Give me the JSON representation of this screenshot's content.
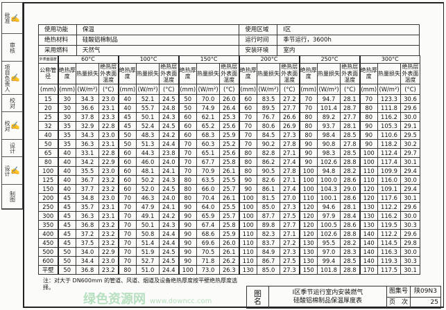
{
  "side_strip": [
    {
      "label": "批准",
      "signature": "签"
    },
    {
      "label": "审核",
      "signature": ""
    },
    {
      "label": "项目负责人",
      "signature": "签"
    },
    {
      "label": "校对",
      "signature": ""
    },
    {
      "label": "校对",
      "signature": "签"
    },
    {
      "label": "设计",
      "signature": ""
    },
    {
      "label": "设计",
      "signature": "签"
    },
    {
      "label": "制图",
      "signature": ""
    }
  ],
  "info": {
    "left": [
      {
        "label": "使用功能",
        "value": "保温"
      },
      {
        "label": "绝热材料",
        "value": "硅酸铝棉制品"
      },
      {
        "label": "采用燃料",
        "value": "天然气"
      }
    ],
    "right": [
      {
        "label": "使用区域",
        "value": "Ⅰ区"
      },
      {
        "label": "运行时间",
        "value": "季节运行，3600h"
      },
      {
        "label": "安装环境",
        "value": "室内"
      }
    ]
  },
  "table": {
    "corner": "外表面温度",
    "temperatures": [
      "60°C",
      "100°C",
      "150°C",
      "200°C",
      "250°C",
      "300°C"
    ],
    "first_header": "公称管径",
    "sub_headers": [
      "绝热厚度",
      "热量损失",
      "绝热层外表面温度"
    ],
    "first_unit": "(mm)",
    "units": [
      "(mm)",
      "(W/m²)",
      "(°C)"
    ],
    "rows": [
      [
        "15",
        "30",
        "34.3",
        "23.0",
        "40",
        "52.1",
        "24.5",
        "50",
        "70.0",
        "26.0",
        "60",
        "83.5",
        "27.2",
        "70",
        "94.7",
        "28.1",
        "70",
        "123.3",
        "30.6"
      ],
      [
        "20",
        "30",
        "36.6",
        "23.1",
        "40",
        "55.7",
        "24.8",
        "50",
        "74.9",
        "26.4",
        "60",
        "89.5",
        "27.7",
        "70",
        "101.4",
        "28.7",
        "80",
        "111.8",
        "29.6"
      ],
      [
        "25",
        "30",
        "37.8",
        "23.3",
        "45",
        "50.1",
        "24.3",
        "60",
        "62.1",
        "25.3",
        "70",
        "76.7",
        "26.6",
        "80",
        "89.2",
        "27.7",
        "80",
        "116.2",
        "30.0"
      ],
      [
        "32",
        "35",
        "32.9",
        "22.8",
        "45",
        "52.4",
        "24.5",
        "60",
        "65.2",
        "25.6",
        "70",
        "80.6",
        "26.9",
        "80",
        "93.7",
        "28.1",
        "90",
        "105.3",
        "29.1"
      ],
      [
        "40",
        "35",
        "34.3",
        "23.0",
        "50",
        "48.3",
        "24.2",
        "60",
        "68.3",
        "25.9",
        "70",
        "84.5",
        "27.3",
        "80",
        "98.4",
        "28.5",
        "90",
        "110.6",
        "29.5"
      ],
      [
        "50",
        "35",
        "36.3",
        "23.1",
        "50",
        "51.3",
        "24.4",
        "70",
        "60.3",
        "25.2",
        "70",
        "90.2",
        "27.8",
        "90",
        "90.8",
        "27.8",
        "90",
        "118.2",
        "30.2"
      ],
      [
        "65",
        "40",
        "33.1",
        "22.8",
        "60",
        "44.3",
        "23.8",
        "70",
        "65.1",
        "25.6",
        "80",
        "82.8",
        "27.1",
        "90",
        "98.3",
        "28.5",
        "100",
        "112.4",
        "29.7"
      ],
      [
        "80",
        "40",
        "34.2",
        "22.9",
        "60",
        "46.0",
        "24.0",
        "70",
        "67.7",
        "25.8",
        "80",
        "86.2",
        "27.4",
        "90",
        "102.6",
        "28.8",
        "100",
        "117.4",
        "30.1"
      ],
      [
        "100",
        "40",
        "35.5",
        "23.0",
        "60",
        "48.1",
        "24.1",
        "70",
        "70.9",
        "26.1",
        "80",
        "90.5",
        "27.8",
        "100",
        "94.8",
        "28.2",
        "110",
        "109.9",
        "29.4"
      ],
      [
        "125",
        "40",
        "36.7",
        "23.2",
        "60",
        "50.2",
        "24.3",
        "80",
        "63.5",
        "25.5",
        "90",
        "82.6",
        "27.1",
        "100",
        "100.0",
        "28.6",
        "110",
        "116.0",
        "30.0"
      ],
      [
        "150",
        "40",
        "37.7",
        "23.2",
        "60",
        "52.0",
        "24.5",
        "80",
        "66.0",
        "25.7",
        "90",
        "86.1",
        "27.4",
        "100",
        "104.3",
        "29.0",
        "120",
        "109.1",
        "29.4"
      ],
      [
        "200",
        "45",
        "34.8",
        "23.0",
        "70",
        "46.3",
        "24.0",
        "80",
        "70.4",
        "26.1",
        "100",
        "81.5",
        "27.0",
        "110",
        "100.1",
        "28.6",
        "120",
        "117.6",
        "30.1"
      ],
      [
        "250",
        "45",
        "35.7",
        "23.1",
        "70",
        "47.9",
        "24.1",
        "90",
        "64.0",
        "25.5",
        "100",
        "85.0",
        "27.3",
        "120",
        "94.6",
        "28.1",
        "130",
        "112.2",
        "29.6"
      ],
      [
        "300",
        "45",
        "36.3",
        "23.1",
        "70",
        "49.1",
        "24.2",
        "90",
        "65.9",
        "25.7",
        "100",
        "87.7",
        "27.5",
        "120",
        "97.9",
        "28.4",
        "130",
        "116.2",
        "30.0"
      ],
      [
        "350",
        "45",
        "36.8",
        "23.2",
        "70",
        "50.1",
        "24.3",
        "90",
        "67.4",
        "25.8",
        "100",
        "89.8",
        "27.7",
        "120",
        "100.5",
        "28.6",
        "130",
        "119.5",
        "30.3"
      ],
      [
        "400",
        "45",
        "37.2",
        "23.2",
        "70",
        "50.8",
        "24.4",
        "90",
        "68.6",
        "25.9",
        "110",
        "82.3",
        "27.1",
        "120",
        "102.6",
        "28.8",
        "140",
        "112.2",
        "29.6"
      ],
      [
        "450",
        "45",
        "37.5",
        "23.2",
        "70",
        "51.4",
        "24.4",
        "90",
        "69.6",
        "26.0",
        "110",
        "83.7",
        "27.2",
        "130",
        "95.5",
        "28.2",
        "140",
        "114.5",
        "29.8"
      ],
      [
        "500",
        "50",
        "34.0",
        "22.9",
        "70",
        "51.9",
        "24.5",
        "90",
        "70.5",
        "26.1",
        "110",
        "84.9",
        "27.3",
        "130",
        "97.0",
        "28.3",
        "140",
        "116.3",
        "30.0"
      ],
      [
        "600",
        "50",
        "34.4",
        "23.0",
        "70",
        "52.7",
        "24.5",
        "90",
        "71.8",
        "26.2",
        "110",
        "86.7",
        "27.5",
        "130",
        "99.4",
        "28.5",
        "140",
        "119.3",
        "30.3"
      ],
      [
        "平壁",
        "50",
        "36.8",
        "23.2",
        "80",
        "51.0",
        "24.4",
        "100",
        "73.0",
        "26.3",
        "130",
        "85.0",
        "27.3",
        "150",
        "101.8",
        "28.8",
        "170",
        "117.5",
        "30.1"
      ]
    ]
  },
  "note": "注：对大于 DN600mm 的管道、风道、烟道及设备绝热厚度按平壁绝热厚度选择。",
  "title_block": {
    "name_label": "图　名",
    "name_line1": "Ⅰ区季节运行室内安装燃气",
    "name_line2": "硅酸铝棉制品保温厚度表",
    "atlas_label": "图集号",
    "atlas_no": "陕09N3",
    "page_label": "页　次",
    "page_no": "25"
  },
  "watermark": {
    "text": "绿色资源网",
    "url": "www.downcc.com",
    "color": "#7dc98f"
  }
}
